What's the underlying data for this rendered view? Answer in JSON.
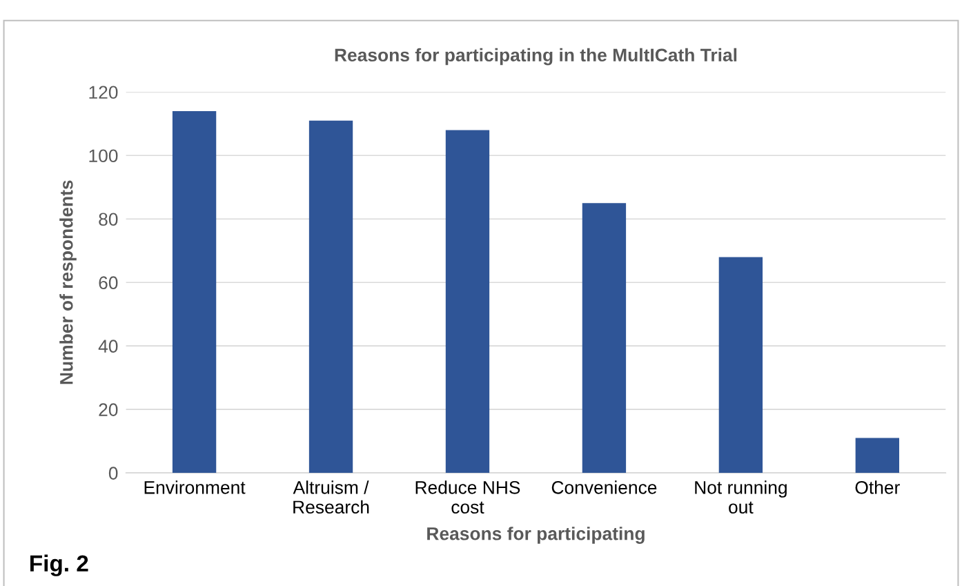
{
  "chart_data": {
    "type": "bar",
    "title": "Reasons for participating in the MultICath Trial",
    "xlabel": "Reasons for participating",
    "ylabel": "Number of respondents",
    "categories": [
      "Environment",
      "Altruism /\nResearch",
      "Reduce NHS\ncost",
      "Convenience",
      "Not running\nout",
      "Other"
    ],
    "values": [
      114,
      111,
      108,
      85,
      68,
      11
    ],
    "color": "#2f5597",
    "ylim": [
      0,
      120
    ],
    "yticks": [
      0,
      20,
      40,
      60,
      80,
      100,
      120
    ],
    "grid": "y",
    "annotations": [
      "Fig. 2"
    ]
  }
}
